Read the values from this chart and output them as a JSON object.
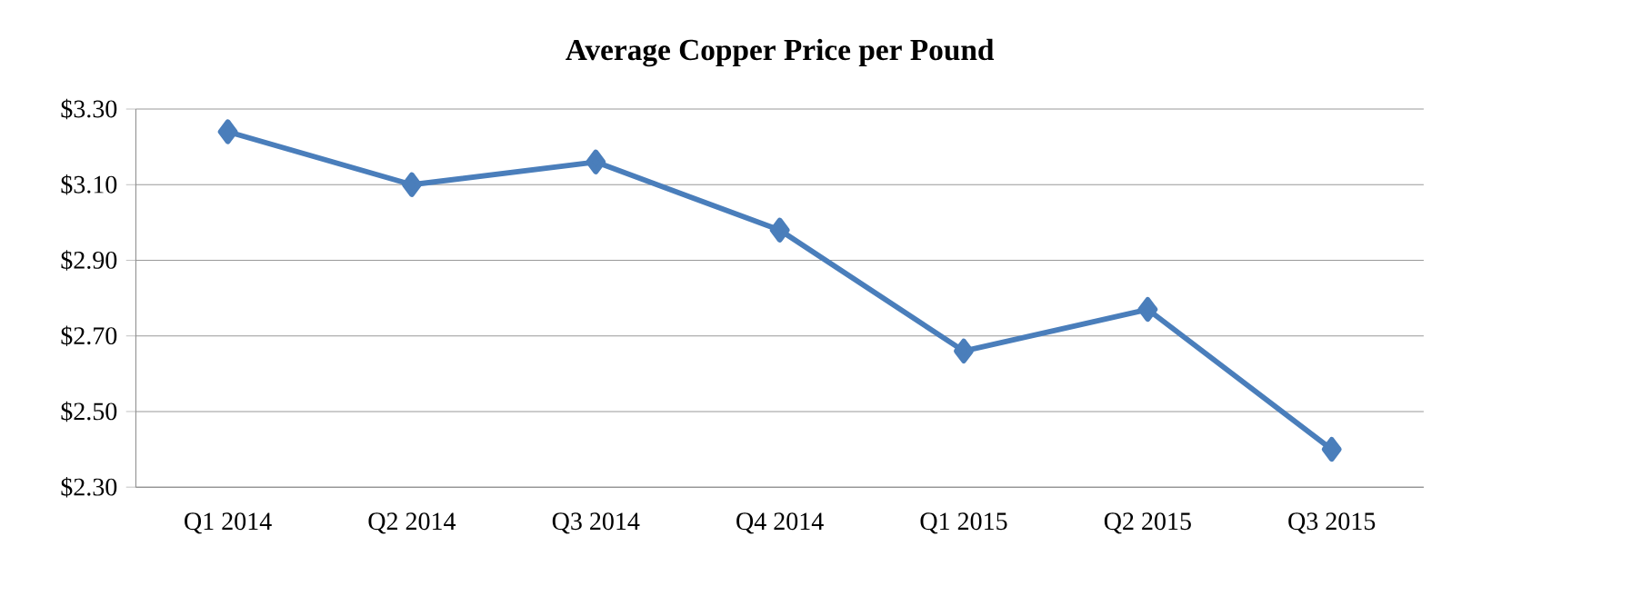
{
  "chart_data": {
    "type": "line",
    "title": "Average Copper Price per Pound",
    "categories": [
      "Q1 2014",
      "Q2 2014",
      "Q3 2014",
      "Q4 2014",
      "Q1 2015",
      "Q2 2015",
      "Q3 2015"
    ],
    "series": [
      {
        "color": "#4a7ebb",
        "values": [
          3.24,
          3.1,
          3.16,
          2.98,
          2.66,
          2.77,
          2.4
        ]
      }
    ],
    "ylim": [
      2.3,
      3.3
    ],
    "yticks": [
      {
        "value": 2.3,
        "label": "$2.30"
      },
      {
        "value": 2.5,
        "label": "$2.50"
      },
      {
        "value": 2.7,
        "label": "$2.70"
      },
      {
        "value": 2.9,
        "label": "$2.90"
      },
      {
        "value": 3.1,
        "label": "$3.10"
      },
      {
        "value": 3.3,
        "label": "$3.30"
      }
    ],
    "grid": "y",
    "marker": "diamond",
    "line_style": "solid"
  }
}
